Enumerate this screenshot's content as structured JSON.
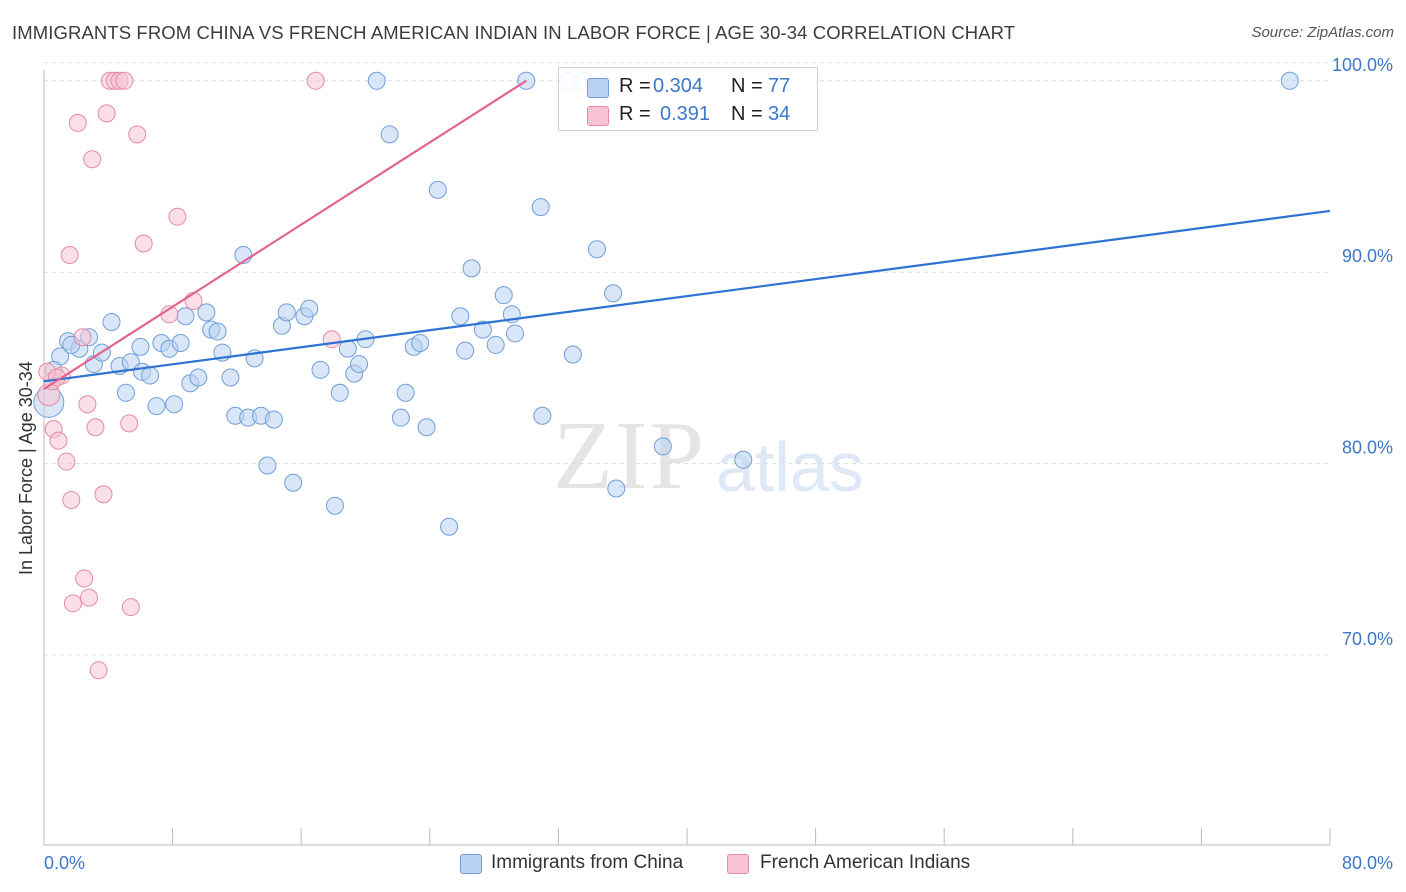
{
  "title": "IMMIGRANTS FROM CHINA VS FRENCH AMERICAN INDIAN IN LABOR FORCE | AGE 30-34 CORRELATION CHART",
  "source": "Source: ZipAtlas.com",
  "watermark": {
    "zip": "ZIP",
    "atlas": "atlas"
  },
  "legend": {
    "rows": [
      {
        "r_label": "R =",
        "r_value": "0.304",
        "n_label": "N =",
        "n_value": "77"
      },
      {
        "r_label": "R =",
        "r_value": "0.391",
        "n_label": "N =",
        "n_value": "34"
      }
    ]
  },
  "bottom_legend": [
    "Immigrants from China",
    "French American Indians"
  ],
  "colors": {
    "blue_fill": "#b9d2f2",
    "blue_stroke": "#6f9fd8",
    "blue_line": "#2e72d2",
    "pink_fill": "#f8c4d4",
    "pink_stroke": "#e68aa8",
    "pink_line": "#e2648f",
    "grid": "#dcdcdc",
    "tick_text": "#3d77c9"
  },
  "chart_data": {
    "type": "scatter",
    "title": "IMMIGRANTS FROM CHINA VS FRENCH AMERICAN INDIAN IN LABOR FORCE | AGE 30-34 CORRELATION CHART",
    "xlabel": "",
    "ylabel": "In Labor Force | Age 30-34",
    "xlim": [
      0,
      80
    ],
    "ylim": [
      60,
      101.5
    ],
    "x_tick_labels": [
      "0.0%",
      "80.0%"
    ],
    "y_ticks": [
      70,
      80,
      90,
      100
    ],
    "y_tick_labels": [
      "70.0%",
      "80.0%",
      "90.0%",
      "100.0%"
    ],
    "grid": true,
    "legend_position": "top-center",
    "series": [
      {
        "name": "Immigrants from China",
        "color": "#b9d2f2",
        "trend": {
          "x": [
            0,
            80
          ],
          "y": [
            84.3,
            93.2
          ]
        },
        "points": [
          [
            0.3,
            83.2
          ],
          [
            1.0,
            85.6
          ],
          [
            1.5,
            86.4
          ],
          [
            2.2,
            86.0
          ],
          [
            2.8,
            86.6
          ],
          [
            3.1,
            85.2
          ],
          [
            3.6,
            85.8
          ],
          [
            4.2,
            87.4
          ],
          [
            4.7,
            85.1
          ],
          [
            5.1,
            83.7
          ],
          [
            5.4,
            85.3
          ],
          [
            6.0,
            86.1
          ],
          [
            6.1,
            84.8
          ],
          [
            6.6,
            84.6
          ],
          [
            7.0,
            83.0
          ],
          [
            7.3,
            86.3
          ],
          [
            7.8,
            86.0
          ],
          [
            8.1,
            83.1
          ],
          [
            8.5,
            86.3
          ],
          [
            8.8,
            87.7
          ],
          [
            9.1,
            84.2
          ],
          [
            9.6,
            84.5
          ],
          [
            10.1,
            87.9
          ],
          [
            10.4,
            87.0
          ],
          [
            10.8,
            86.9
          ],
          [
            11.1,
            85.8
          ],
          [
            11.6,
            84.5
          ],
          [
            11.9,
            82.5
          ],
          [
            12.4,
            90.9
          ],
          [
            12.7,
            82.4
          ],
          [
            13.1,
            85.5
          ],
          [
            13.5,
            82.5
          ],
          [
            13.9,
            79.9
          ],
          [
            14.3,
            82.3
          ],
          [
            14.8,
            87.2
          ],
          [
            15.1,
            87.9
          ],
          [
            15.5,
            79.0
          ],
          [
            16.2,
            87.7
          ],
          [
            16.5,
            88.1
          ],
          [
            17.2,
            84.9
          ],
          [
            18.1,
            77.8
          ],
          [
            18.4,
            83.7
          ],
          [
            18.9,
            86.0
          ],
          [
            19.3,
            84.7
          ],
          [
            19.6,
            85.2
          ],
          [
            20.0,
            86.5
          ],
          [
            20.7,
            100.0
          ],
          [
            21.5,
            97.2
          ],
          [
            22.2,
            82.4
          ],
          [
            22.5,
            83.7
          ],
          [
            23.0,
            86.1
          ],
          [
            23.4,
            86.3
          ],
          [
            23.8,
            81.9
          ],
          [
            24.5,
            94.3
          ],
          [
            25.2,
            76.7
          ],
          [
            25.9,
            87.7
          ],
          [
            26.2,
            85.9
          ],
          [
            26.6,
            90.2
          ],
          [
            27.3,
            87.0
          ],
          [
            28.1,
            86.2
          ],
          [
            28.6,
            88.8
          ],
          [
            29.1,
            87.8
          ],
          [
            29.3,
            86.8
          ],
          [
            30.0,
            100.0
          ],
          [
            30.9,
            93.4
          ],
          [
            31.0,
            82.5
          ],
          [
            32.6,
            100.0
          ],
          [
            32.9,
            85.7
          ],
          [
            33.6,
            100.0
          ],
          [
            34.4,
            91.2
          ],
          [
            35.4,
            88.9
          ],
          [
            35.6,
            78.7
          ],
          [
            38.5,
            80.9
          ],
          [
            43.5,
            80.2
          ],
          [
            77.5,
            100.0
          ],
          [
            0.6,
            84.9
          ],
          [
            1.7,
            86.2
          ]
        ]
      },
      {
        "name": "French American Indians",
        "color": "#f8c4d4",
        "trend": {
          "x": [
            0,
            30
          ],
          "y": [
            83.9,
            100.0
          ]
        },
        "points": [
          [
            0.3,
            83.6
          ],
          [
            0.5,
            84.3
          ],
          [
            0.6,
            81.8
          ],
          [
            0.9,
            81.2
          ],
          [
            1.1,
            84.6
          ],
          [
            1.4,
            80.1
          ],
          [
            1.6,
            90.9
          ],
          [
            1.7,
            78.1
          ],
          [
            1.8,
            72.7
          ],
          [
            2.1,
            97.8
          ],
          [
            2.4,
            86.6
          ],
          [
            2.5,
            74.0
          ],
          [
            2.7,
            83.1
          ],
          [
            2.8,
            73.0
          ],
          [
            3.0,
            95.9
          ],
          [
            3.2,
            81.9
          ],
          [
            3.4,
            69.2
          ],
          [
            3.7,
            78.4
          ],
          [
            3.9,
            98.3
          ],
          [
            4.1,
            100.0
          ],
          [
            4.4,
            100.0
          ],
          [
            4.7,
            100.0
          ],
          [
            5.0,
            100.0
          ],
          [
            5.3,
            82.1
          ],
          [
            5.4,
            72.5
          ],
          [
            5.8,
            97.2
          ],
          [
            6.2,
            91.5
          ],
          [
            7.8,
            87.8
          ],
          [
            8.3,
            92.9
          ],
          [
            9.3,
            88.5
          ],
          [
            16.9,
            100.0
          ],
          [
            17.9,
            86.5
          ],
          [
            0.2,
            84.8
          ],
          [
            0.8,
            84.5
          ]
        ]
      }
    ]
  }
}
